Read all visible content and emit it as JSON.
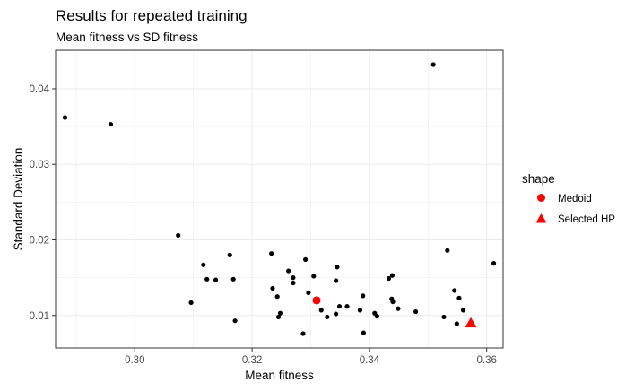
{
  "chart_data": {
    "type": "scatter",
    "title": "Results for repeated training",
    "subtitle": "Mean fitness vs SD fitness",
    "xlabel": "Mean fitness",
    "ylabel": "Standard Deviation",
    "xlim": [
      0.2865,
      0.3628
    ],
    "ylim": [
      0.0057,
      0.0451
    ],
    "x_ticks": [
      0.3,
      0.32,
      0.34,
      0.36
    ],
    "x_tick_labels": [
      "0.30",
      "0.32",
      "0.34",
      "0.36"
    ],
    "y_ticks": [
      0.01,
      0.02,
      0.03,
      0.04
    ],
    "y_tick_labels": [
      "0.01",
      "0.02",
      "0.03",
      "0.04"
    ],
    "grid": true,
    "legend_position": "right",
    "legend": {
      "title": "shape",
      "items": [
        {
          "label": "Medoid",
          "shape": "circle",
          "color": "#ff0000"
        },
        {
          "label": "Selected HP",
          "shape": "triangle",
          "color": "#ff0000"
        }
      ]
    },
    "series": [
      {
        "color": "#000000",
        "shape": "circle",
        "points": [
          [
            0.2881,
            0.0362
          ],
          [
            0.2959,
            0.0353
          ],
          [
            0.3074,
            0.0206
          ],
          [
            0.3096,
            0.0117
          ],
          [
            0.3117,
            0.0167
          ],
          [
            0.3123,
            0.0148
          ],
          [
            0.3138,
            0.0147
          ],
          [
            0.3162,
            0.018
          ],
          [
            0.3168,
            0.0148
          ],
          [
            0.3171,
            0.0093
          ],
          [
            0.3233,
            0.0182
          ],
          [
            0.3235,
            0.0136
          ],
          [
            0.3243,
            0.0125
          ],
          [
            0.3245,
            0.0098
          ],
          [
            0.3248,
            0.0103
          ],
          [
            0.3262,
            0.0159
          ],
          [
            0.327,
            0.015
          ],
          [
            0.327,
            0.0143
          ],
          [
            0.3287,
            0.0076
          ],
          [
            0.3291,
            0.0174
          ],
          [
            0.3296,
            0.013
          ],
          [
            0.3305,
            0.0152
          ],
          [
            0.3318,
            0.0107
          ],
          [
            0.3328,
            0.0098
          ],
          [
            0.3343,
            0.0146
          ],
          [
            0.3343,
            0.0102
          ],
          [
            0.3345,
            0.0164
          ],
          [
            0.3349,
            0.0112
          ],
          [
            0.3362,
            0.0112
          ],
          [
            0.3384,
            0.0107
          ],
          [
            0.3389,
            0.0126
          ],
          [
            0.339,
            0.0077
          ],
          [
            0.3409,
            0.0103
          ],
          [
            0.3413,
            0.0099
          ],
          [
            0.3433,
            0.0149
          ],
          [
            0.3438,
            0.0122
          ],
          [
            0.3439,
            0.0153
          ],
          [
            0.344,
            0.0118
          ],
          [
            0.3449,
            0.0109
          ],
          [
            0.3479,
            0.0105
          ],
          [
            0.3509,
            0.0432
          ],
          [
            0.3527,
            0.0098
          ],
          [
            0.3533,
            0.0186
          ],
          [
            0.3545,
            0.0133
          ],
          [
            0.3549,
            0.0089
          ],
          [
            0.3553,
            0.0123
          ],
          [
            0.356,
            0.0107
          ],
          [
            0.3612,
            0.0169
          ]
        ]
      },
      {
        "name": "Medoid",
        "color": "#ff0000",
        "shape": "circle",
        "points": [
          [
            0.331,
            0.012
          ]
        ]
      },
      {
        "name": "Selected HP",
        "color": "#ff0000",
        "shape": "triangle",
        "points": [
          [
            0.3573,
            0.009
          ]
        ]
      }
    ]
  }
}
